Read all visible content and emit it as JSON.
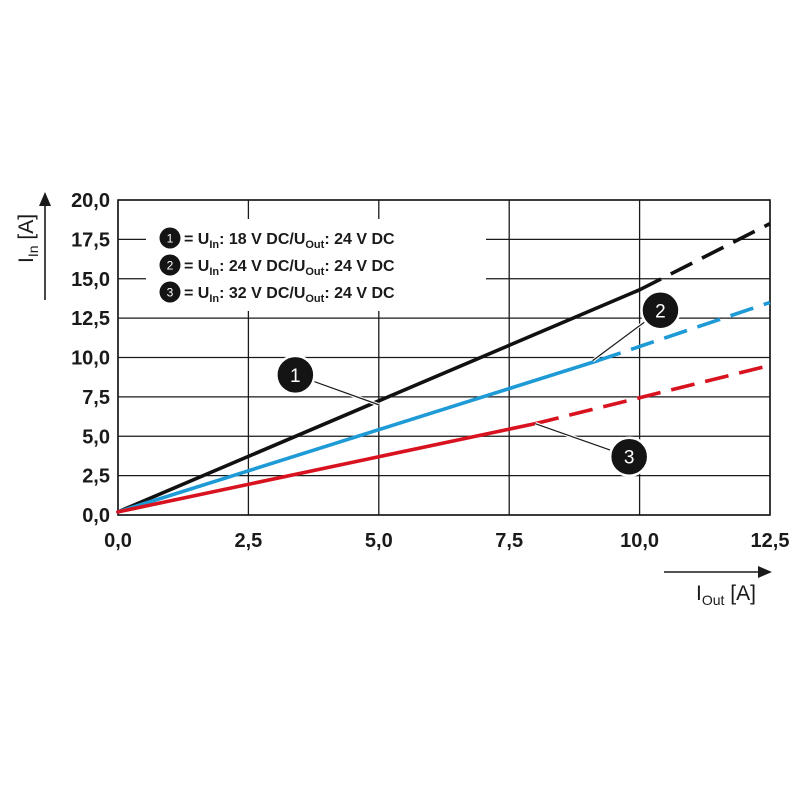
{
  "chart_data": {
    "type": "line",
    "title": "",
    "x_axis": {
      "label_main": "I",
      "label_sub": "Out",
      "label_unit": " [A]",
      "range": [
        0,
        12.5
      ],
      "ticks": [
        0,
        2.5,
        5,
        7.5,
        10,
        12.5
      ],
      "tick_labels": [
        "0,0",
        "2,5",
        "5,0",
        "7,5",
        "10,0",
        "12,5"
      ]
    },
    "y_axis": {
      "label_main": "I",
      "label_sub": "In",
      "label_unit": " [A]",
      "range": [
        0,
        20
      ],
      "ticks": [
        0,
        2.5,
        5,
        7.5,
        10,
        12.5,
        15,
        17.5,
        20
      ],
      "tick_labels": [
        "0,0",
        "2,5",
        "5,0",
        "7,5",
        "10,0",
        "12,5",
        "15,0",
        "17,5",
        "20,0"
      ]
    },
    "grid": true,
    "legend": {
      "placement": "top-left",
      "entries": [
        {
          "marker": "1",
          "eq": " = U",
          "sub1": "In",
          "mid": ": 18 V DC/U",
          "sub2": "Out",
          "end": ": 24 V DC"
        },
        {
          "marker": "2",
          "eq": " = U",
          "sub1": "In",
          "mid": ": 24 V DC/U",
          "sub2": "Out",
          "end": ": 24 V DC"
        },
        {
          "marker": "3",
          "eq": " = U",
          "sub1": "In",
          "mid": ": 32 V DC/U",
          "sub2": "Out",
          "end": ": 24 V DC"
        }
      ]
    },
    "series": [
      {
        "marker": "1",
        "color": "#111111",
        "solid": [
          [
            0,
            0.2
          ],
          [
            10,
            14.3
          ]
        ],
        "dashed": [
          [
            10,
            14.3
          ],
          [
            12.5,
            18.5
          ]
        ]
      },
      {
        "marker": "2",
        "color": "#1e9ad6",
        "solid": [
          [
            0,
            0.2
          ],
          [
            9.2,
            9.8
          ]
        ],
        "dashed": [
          [
            9.2,
            9.8
          ],
          [
            12.5,
            13.5
          ]
        ]
      },
      {
        "marker": "3",
        "color": "#d8121f",
        "solid": [
          [
            0,
            0.2
          ],
          [
            8,
            5.8
          ]
        ],
        "dashed": [
          [
            8,
            5.8
          ],
          [
            12.5,
            9.5
          ]
        ]
      }
    ],
    "callouts": [
      {
        "marker": "1",
        "color": "#111111",
        "at": [
          5.0,
          7.0
        ],
        "label": [
          3.4,
          8.9
        ]
      },
      {
        "marker": "2",
        "color": "#1e9ad6",
        "at": [
          9.1,
          9.8
        ],
        "label": [
          10.4,
          13.0
        ]
      },
      {
        "marker": "3",
        "color": "#d8121f",
        "at": [
          8.0,
          5.8
        ],
        "label": [
          9.8,
          3.7
        ]
      }
    ]
  }
}
